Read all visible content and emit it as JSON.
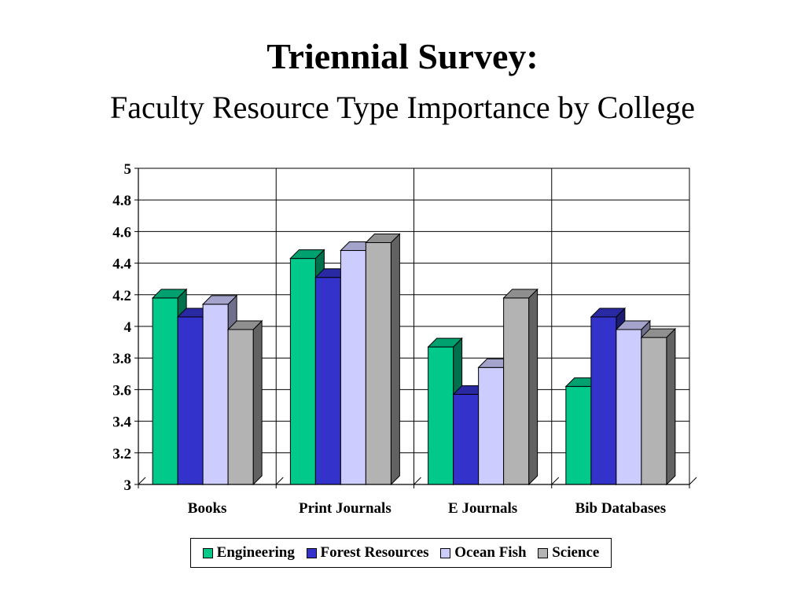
{
  "title": "Triennial Survey:",
  "subtitle": "Faculty Resource Type Importance by College",
  "chart_data": {
    "type": "bar",
    "title": "Triennial Survey:",
    "subtitle": "Faculty Resource Type Importance by College",
    "categories": [
      "Books",
      "Print Journals",
      "E Journals",
      "Bib Databases"
    ],
    "series": [
      {
        "name": "Engineering",
        "color": "#00c98a",
        "values": [
          4.18,
          4.43,
          3.87,
          3.62
        ]
      },
      {
        "name": "Forest Resources",
        "color": "#3333cc",
        "values": [
          4.06,
          4.31,
          3.57,
          4.06
        ]
      },
      {
        "name": "Ocean Fish",
        "color": "#ccccff",
        "values": [
          4.14,
          4.48,
          3.74,
          3.98
        ]
      },
      {
        "name": "Science",
        "color": "#b3b3b3",
        "values": [
          3.98,
          4.53,
          4.18,
          3.93
        ]
      }
    ],
    "y_ticks": [
      "3",
      "3.2",
      "3.4",
      "3.6",
      "3.8",
      "4",
      "4.2",
      "4.4",
      "4.6",
      "4.8",
      "5"
    ],
    "ylim": [
      3,
      5
    ],
    "grid": true,
    "legend_position": "bottom",
    "xlabel": "",
    "ylabel": ""
  }
}
